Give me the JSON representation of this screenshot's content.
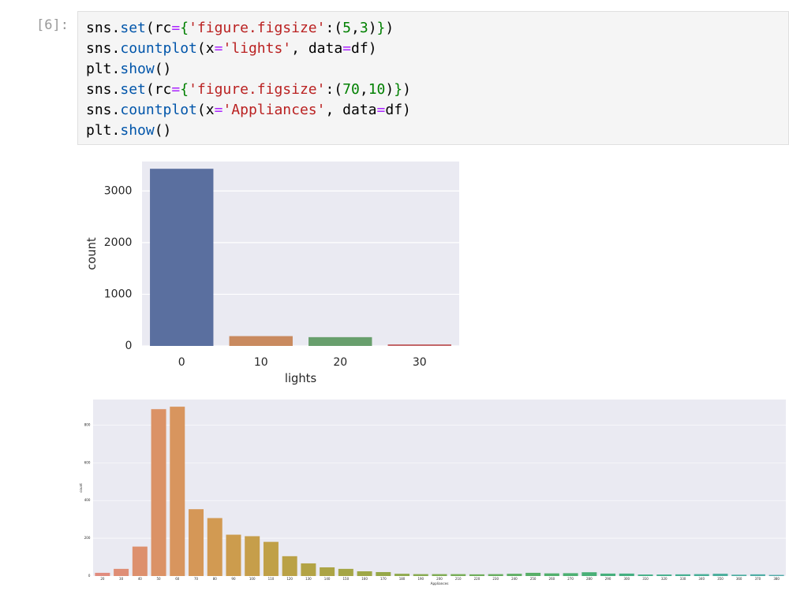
{
  "cell": {
    "prompt": "[6]:",
    "code": [
      [
        {
          "text": "sns.",
          "color": "#000000"
        },
        {
          "text": "set",
          "color": "#0055aa"
        },
        {
          "text": "(rc",
          "color": "#000000"
        },
        {
          "text": "=",
          "color": "#aa22ff"
        },
        {
          "text": "{",
          "color": "#008000"
        },
        {
          "text": "'figure.figsize'",
          "color": "#ba2121"
        },
        {
          "text": ":(",
          "color": "#000000"
        },
        {
          "text": "5",
          "color": "#008000"
        },
        {
          "text": ",",
          "color": "#000000"
        },
        {
          "text": "3",
          "color": "#008000"
        },
        {
          "text": ")",
          "color": "#000000"
        },
        {
          "text": "}",
          "color": "#008000"
        },
        {
          "text": ")",
          "color": "#000000"
        }
      ],
      [
        {
          "text": "sns.",
          "color": "#000000"
        },
        {
          "text": "countplot",
          "color": "#0055aa"
        },
        {
          "text": "(x",
          "color": "#000000"
        },
        {
          "text": "=",
          "color": "#aa22ff"
        },
        {
          "text": "'lights'",
          "color": "#ba2121"
        },
        {
          "text": ", data",
          "color": "#000000"
        },
        {
          "text": "=",
          "color": "#aa22ff"
        },
        {
          "text": "df)",
          "color": "#000000"
        }
      ],
      [
        {
          "text": "plt.",
          "color": "#000000"
        },
        {
          "text": "show",
          "color": "#0055aa"
        },
        {
          "text": "()",
          "color": "#000000"
        }
      ],
      [
        {
          "text": "sns.",
          "color": "#000000"
        },
        {
          "text": "set",
          "color": "#0055aa"
        },
        {
          "text": "(rc",
          "color": "#000000"
        },
        {
          "text": "=",
          "color": "#aa22ff"
        },
        {
          "text": "{",
          "color": "#008000"
        },
        {
          "text": "'figure.figsize'",
          "color": "#ba2121"
        },
        {
          "text": ":(",
          "color": "#000000"
        },
        {
          "text": "70",
          "color": "#008000"
        },
        {
          "text": ",",
          "color": "#000000"
        },
        {
          "text": "10",
          "color": "#008000"
        },
        {
          "text": ")",
          "color": "#000000"
        },
        {
          "text": "}",
          "color": "#008000"
        },
        {
          "text": ")",
          "color": "#000000"
        }
      ],
      [
        {
          "text": "sns.",
          "color": "#000000"
        },
        {
          "text": "countplot",
          "color": "#0055aa"
        },
        {
          "text": "(x",
          "color": "#000000"
        },
        {
          "text": "=",
          "color": "#aa22ff"
        },
        {
          "text": "'Appliances'",
          "color": "#ba2121"
        },
        {
          "text": ", data",
          "color": "#000000"
        },
        {
          "text": "=",
          "color": "#aa22ff"
        },
        {
          "text": "df)",
          "color": "#000000"
        }
      ],
      [
        {
          "text": "plt.",
          "color": "#000000"
        },
        {
          "text": "show",
          "color": "#0055aa"
        },
        {
          "text": "()",
          "color": "#000000"
        }
      ]
    ]
  },
  "chart_data": [
    {
      "type": "bar",
      "x_label": "lights",
      "y_label": "count",
      "categories": [
        "0",
        "10",
        "20",
        "30"
      ],
      "values": [
        3430,
        190,
        170,
        30
      ],
      "colors": [
        "#5a6f9f",
        "#c98a5f",
        "#689f6d",
        "#c26466"
      ],
      "ylim": [
        0,
        3570
      ],
      "yticks": [
        0,
        1000,
        2000,
        3000
      ],
      "grid": true
    },
    {
      "type": "bar",
      "x_label": "Appliances",
      "y_label": "count",
      "categories": [
        "20",
        "30",
        "40",
        "50",
        "60",
        "70",
        "80",
        "90",
        "100",
        "110",
        "120",
        "130",
        "140",
        "150",
        "160",
        "170",
        "180",
        "190",
        "200",
        "210",
        "220",
        "230",
        "240",
        "250",
        "260",
        "270",
        "280",
        "290",
        "300",
        "310",
        "320",
        "330",
        "340",
        "350",
        "360",
        "370",
        "380"
      ],
      "values": [
        17,
        38,
        156,
        884,
        897,
        354,
        307,
        219,
        211,
        181,
        105,
        67,
        46,
        38,
        25,
        21,
        12,
        10,
        10,
        10,
        9,
        10,
        12,
        17,
        14,
        15,
        20,
        13,
        13,
        8,
        8,
        9,
        10,
        12,
        7,
        9,
        6
      ],
      "colors": [
        "#e08c7e",
        "#df8e76",
        "#dd906e",
        "#db9266",
        "#d8955e",
        "#d59757",
        "#d29a52",
        "#cc9c4d",
        "#c69e4a",
        "#c0a047",
        "#baa146",
        "#b3a345",
        "#aca445",
        "#a5a646",
        "#9ea747",
        "#96a849",
        "#8ea94c",
        "#86aa4f",
        "#7eab52",
        "#76ac56",
        "#6ead5a",
        "#66ad5e",
        "#5fae63",
        "#58ae68",
        "#52af6d",
        "#4daf72",
        "#49af77",
        "#46af7c",
        "#44af81",
        "#43af86",
        "#43ae8b",
        "#44ae90",
        "#46ad95",
        "#48ad9a",
        "#4bac9f",
        "#4eaca4",
        "#52aba9"
      ],
      "ylim": [
        0,
        935
      ],
      "yticks": [
        0,
        200,
        400,
        600,
        800
      ],
      "grid": true
    }
  ]
}
